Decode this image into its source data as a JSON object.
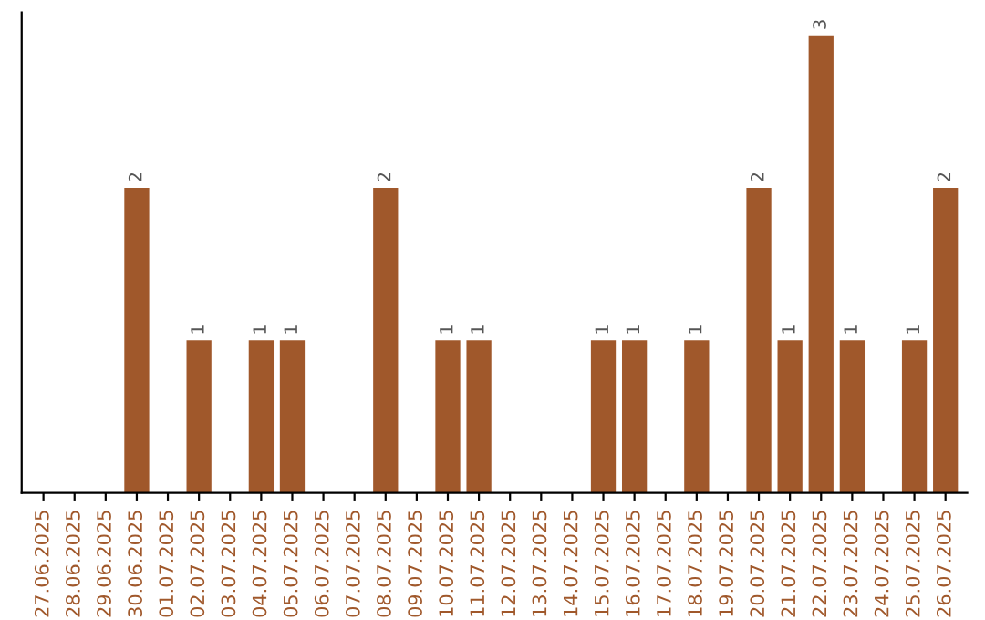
{
  "chart_data": {
    "type": "bar",
    "categories": [
      "27.06.2025",
      "28.06.2025",
      "29.06.2025",
      "30.06.2025",
      "01.07.2025",
      "02.07.2025",
      "03.07.2025",
      "04.07.2025",
      "05.07.2025",
      "06.07.2025",
      "07.07.2025",
      "08.07.2025",
      "09.07.2025",
      "10.07.2025",
      "11.07.2025",
      "12.07.2025",
      "13.07.2025",
      "14.07.2025",
      "15.07.2025",
      "16.07.2025",
      "17.07.2025",
      "18.07.2025",
      "19.07.2025",
      "20.07.2025",
      "21.07.2025",
      "22.07.2025",
      "23.07.2025",
      "24.07.2025",
      "25.07.2025",
      "26.07.2025"
    ],
    "values": [
      0,
      0,
      0,
      2,
      0,
      1,
      0,
      1,
      1,
      0,
      0,
      2,
      0,
      1,
      1,
      0,
      0,
      0,
      1,
      1,
      0,
      1,
      0,
      2,
      1,
      3,
      1,
      0,
      1,
      2
    ],
    "value_labels": [
      null,
      null,
      null,
      "2",
      null,
      "1",
      null,
      "1",
      "1",
      null,
      null,
      "2",
      null,
      "1",
      "1",
      null,
      null,
      null,
      "1",
      "1",
      null,
      "1",
      null,
      "2",
      "1",
      "3",
      "1",
      null,
      "1",
      "2"
    ],
    "color": "#a0582b",
    "grid": false,
    "legend": false
  }
}
